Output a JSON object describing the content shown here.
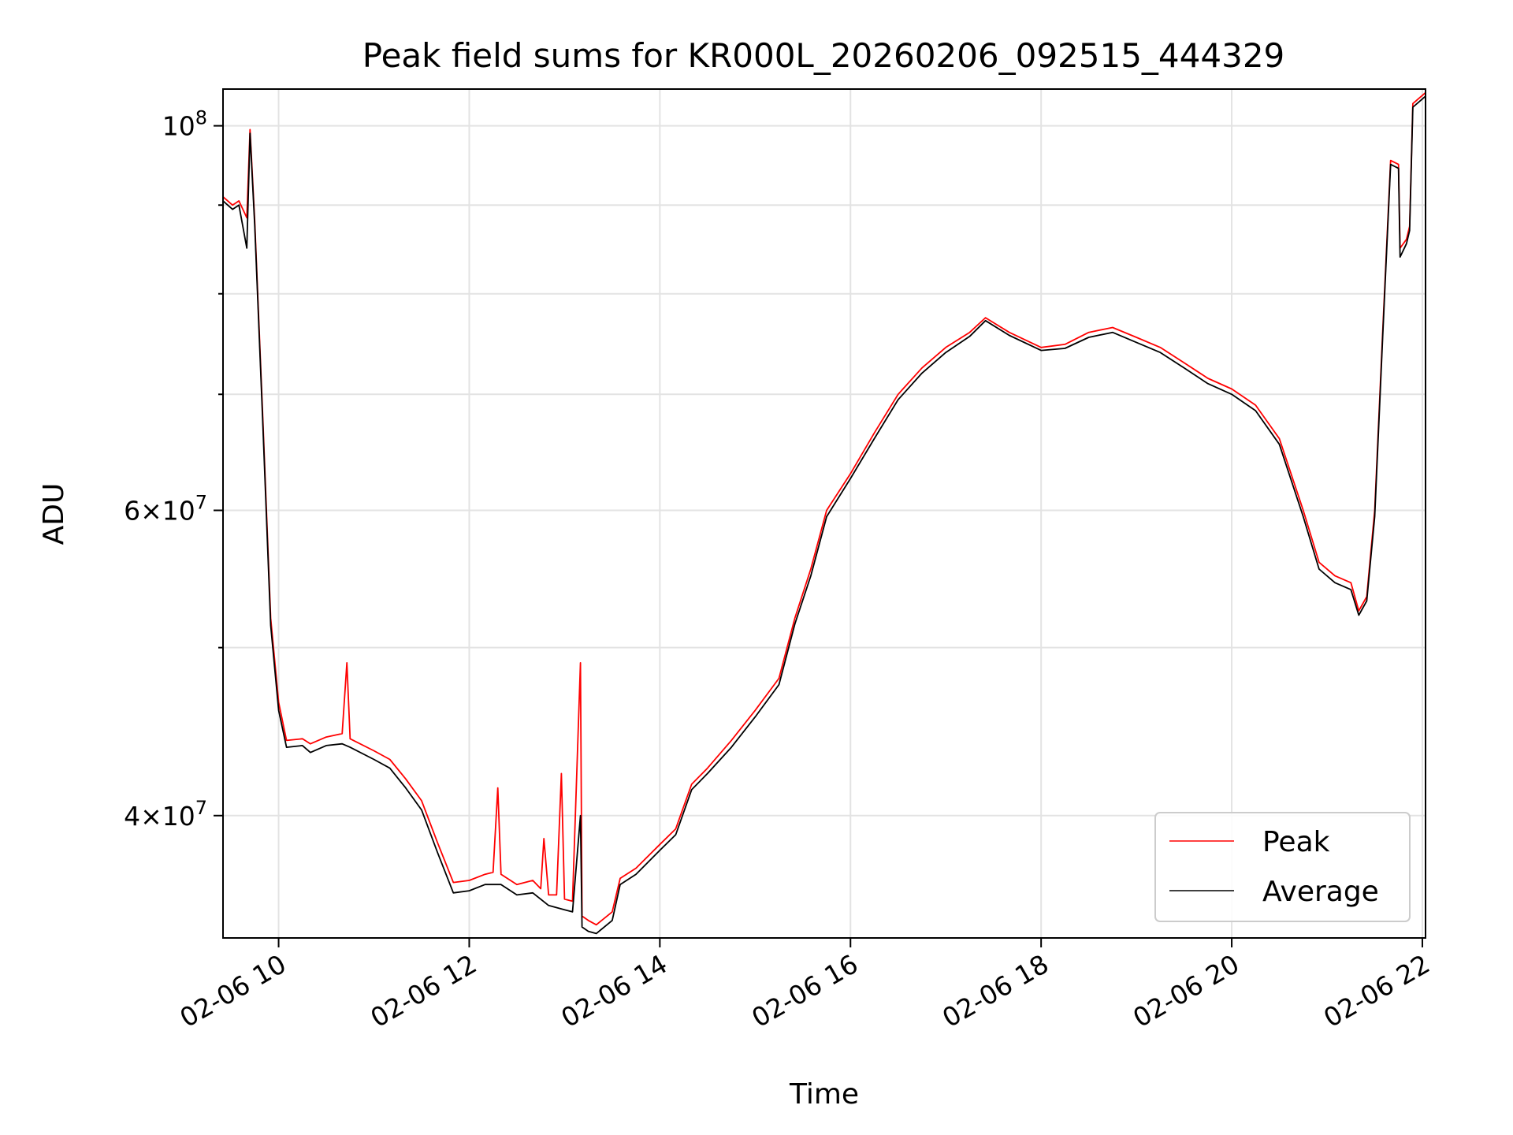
{
  "chart_data": {
    "type": "line",
    "title": "Peak field sums for KR000L_20260206_092515_444329",
    "xlabel": "Time",
    "ylabel": "ADU",
    "x_is_time": true,
    "date": "02-06",
    "xlim": [
      "2026-02-06 09:25",
      "2026-02-06 22:02"
    ],
    "ylim": [
      34000000,
      105000000
    ],
    "yscale": "log",
    "grid": true,
    "legend_position": "lower-right",
    "x_ticks": [
      {
        "t": "2026-02-06 10:00",
        "label": "02-06 10"
      },
      {
        "t": "2026-02-06 12:00",
        "label": "02-06 12"
      },
      {
        "t": "2026-02-06 14:00",
        "label": "02-06 14"
      },
      {
        "t": "2026-02-06 16:00",
        "label": "02-06 16"
      },
      {
        "t": "2026-02-06 18:00",
        "label": "02-06 18"
      },
      {
        "t": "2026-02-06 20:00",
        "label": "02-06 20"
      },
      {
        "t": "2026-02-06 22:00",
        "label": "02-06 22"
      }
    ],
    "y_major_ticks": [
      {
        "v": 40000000,
        "mantissa": "4",
        "exp": "7"
      },
      {
        "v": 60000000,
        "mantissa": "6",
        "exp": "7"
      },
      {
        "v": 100000000,
        "mantissa": "",
        "exp": "8"
      }
    ],
    "y_minor_ticks": [
      50000000,
      70000000,
      80000000,
      90000000
    ],
    "series": [
      {
        "name": "Peak",
        "color": "#ff0000",
        "points": [
          [
            "2026-02-06 09:25",
            91000000
          ],
          [
            "2026-02-06 09:31",
            90000000
          ],
          [
            "2026-02-06 09:35",
            90500000
          ],
          [
            "2026-02-06 09:40",
            88500000
          ],
          [
            "2026-02-06 09:42",
            99500000
          ],
          [
            "2026-02-06 09:45",
            88000000
          ],
          [
            "2026-02-06 09:50",
            68000000
          ],
          [
            "2026-02-06 09:55",
            52000000
          ],
          [
            "2026-02-06 10:00",
            46500000
          ],
          [
            "2026-02-06 10:05",
            44200000
          ],
          [
            "2026-02-06 10:15",
            44300000
          ],
          [
            "2026-02-06 10:20",
            44000000
          ],
          [
            "2026-02-06 10:30",
            44400000
          ],
          [
            "2026-02-06 10:40",
            44600000
          ],
          [
            "2026-02-06 10:43",
            49000000
          ],
          [
            "2026-02-06 10:45",
            44300000
          ],
          [
            "2026-02-06 11:00",
            43600000
          ],
          [
            "2026-02-06 11:10",
            43100000
          ],
          [
            "2026-02-06 11:20",
            42000000
          ],
          [
            "2026-02-06 11:30",
            40800000
          ],
          [
            "2026-02-06 11:40",
            38600000
          ],
          [
            "2026-02-06 11:50",
            36600000
          ],
          [
            "2026-02-06 12:00",
            36700000
          ],
          [
            "2026-02-06 12:10",
            37000000
          ],
          [
            "2026-02-06 12:15",
            37100000
          ],
          [
            "2026-02-06 12:18",
            41500000
          ],
          [
            "2026-02-06 12:20",
            37000000
          ],
          [
            "2026-02-06 12:30",
            36500000
          ],
          [
            "2026-02-06 12:40",
            36700000
          ],
          [
            "2026-02-06 12:45",
            36300000
          ],
          [
            "2026-02-06 12:47",
            38800000
          ],
          [
            "2026-02-06 12:50",
            36000000
          ],
          [
            "2026-02-06 12:55",
            36000000
          ],
          [
            "2026-02-06 12:58",
            42300000
          ],
          [
            "2026-02-06 13:00",
            35800000
          ],
          [
            "2026-02-06 13:05",
            35700000
          ],
          [
            "2026-02-06 13:10",
            49000000
          ],
          [
            "2026-02-06 13:11",
            35000000
          ],
          [
            "2026-02-06 13:15",
            34800000
          ],
          [
            "2026-02-06 13:20",
            34600000
          ],
          [
            "2026-02-06 13:30",
            35200000
          ],
          [
            "2026-02-06 13:35",
            36800000
          ],
          [
            "2026-02-06 13:45",
            37300000
          ],
          [
            "2026-02-06 14:00",
            38500000
          ],
          [
            "2026-02-06 14:10",
            39300000
          ],
          [
            "2026-02-06 14:20",
            41700000
          ],
          [
            "2026-02-06 14:30",
            42600000
          ],
          [
            "2026-02-06 14:45",
            44200000
          ],
          [
            "2026-02-06 15:00",
            46000000
          ],
          [
            "2026-02-06 15:15",
            48000000
          ],
          [
            "2026-02-06 15:25",
            52000000
          ],
          [
            "2026-02-06 15:35",
            55500000
          ],
          [
            "2026-02-06 15:45",
            60000000
          ],
          [
            "2026-02-06 16:00",
            63000000
          ],
          [
            "2026-02-06 16:15",
            66500000
          ],
          [
            "2026-02-06 16:30",
            70000000
          ],
          [
            "2026-02-06 16:45",
            72500000
          ],
          [
            "2026-02-06 17:00",
            74500000
          ],
          [
            "2026-02-06 17:15",
            76000000
          ],
          [
            "2026-02-06 17:25",
            77500000
          ],
          [
            "2026-02-06 17:40",
            76000000
          ],
          [
            "2026-02-06 18:00",
            74500000
          ],
          [
            "2026-02-06 18:15",
            74800000
          ],
          [
            "2026-02-06 18:30",
            76000000
          ],
          [
            "2026-02-06 18:45",
            76500000
          ],
          [
            "2026-02-06 19:00",
            75500000
          ],
          [
            "2026-02-06 19:15",
            74500000
          ],
          [
            "2026-02-06 19:30",
            73000000
          ],
          [
            "2026-02-06 19:45",
            71500000
          ],
          [
            "2026-02-06 20:00",
            70500000
          ],
          [
            "2026-02-06 20:15",
            69000000
          ],
          [
            "2026-02-06 20:30",
            66000000
          ],
          [
            "2026-02-06 20:45",
            60000000
          ],
          [
            "2026-02-06 20:55",
            56000000
          ],
          [
            "2026-02-06 21:05",
            55000000
          ],
          [
            "2026-02-06 21:15",
            54500000
          ],
          [
            "2026-02-06 21:20",
            52500000
          ],
          [
            "2026-02-06 21:25",
            53500000
          ],
          [
            "2026-02-06 21:30",
            60000000
          ],
          [
            "2026-02-06 21:35",
            76000000
          ],
          [
            "2026-02-06 21:40",
            95500000
          ],
          [
            "2026-02-06 21:45",
            95000000
          ],
          [
            "2026-02-06 21:46",
            85000000
          ],
          [
            "2026-02-06 21:50",
            86000000
          ],
          [
            "2026-02-06 21:52",
            87500000
          ],
          [
            "2026-02-06 21:54",
            103000000
          ],
          [
            "2026-02-06 22:02",
            104500000
          ]
        ]
      },
      {
        "name": "Average",
        "color": "#000000",
        "points": [
          [
            "2026-02-06 09:25",
            90500000
          ],
          [
            "2026-02-06 09:31",
            89500000
          ],
          [
            "2026-02-06 09:35",
            90000000
          ],
          [
            "2026-02-06 09:40",
            85000000
          ],
          [
            "2026-02-06 09:42",
            99000000
          ],
          [
            "2026-02-06 09:45",
            87500000
          ],
          [
            "2026-02-06 09:50",
            67500000
          ],
          [
            "2026-02-06 09:55",
            51500000
          ],
          [
            "2026-02-06 10:00",
            46000000
          ],
          [
            "2026-02-06 10:05",
            43800000
          ],
          [
            "2026-02-06 10:15",
            43900000
          ],
          [
            "2026-02-06 10:20",
            43500000
          ],
          [
            "2026-02-06 10:30",
            43900000
          ],
          [
            "2026-02-06 10:40",
            44000000
          ],
          [
            "2026-02-06 10:45",
            43800000
          ],
          [
            "2026-02-06 11:00",
            43100000
          ],
          [
            "2026-02-06 11:10",
            42600000
          ],
          [
            "2026-02-06 11:20",
            41500000
          ],
          [
            "2026-02-06 11:30",
            40300000
          ],
          [
            "2026-02-06 11:40",
            38100000
          ],
          [
            "2026-02-06 11:50",
            36100000
          ],
          [
            "2026-02-06 12:00",
            36200000
          ],
          [
            "2026-02-06 12:10",
            36500000
          ],
          [
            "2026-02-06 12:20",
            36500000
          ],
          [
            "2026-02-06 12:30",
            36000000
          ],
          [
            "2026-02-06 12:40",
            36100000
          ],
          [
            "2026-02-06 12:50",
            35500000
          ],
          [
            "2026-02-06 13:00",
            35300000
          ],
          [
            "2026-02-06 13:05",
            35200000
          ],
          [
            "2026-02-06 13:10",
            40000000
          ],
          [
            "2026-02-06 13:11",
            34500000
          ],
          [
            "2026-02-06 13:15",
            34300000
          ],
          [
            "2026-02-06 13:20",
            34200000
          ],
          [
            "2026-02-06 13:30",
            34800000
          ],
          [
            "2026-02-06 13:35",
            36500000
          ],
          [
            "2026-02-06 13:45",
            37000000
          ],
          [
            "2026-02-06 14:00",
            38200000
          ],
          [
            "2026-02-06 14:10",
            39000000
          ],
          [
            "2026-02-06 14:20",
            41400000
          ],
          [
            "2026-02-06 14:30",
            42300000
          ],
          [
            "2026-02-06 14:45",
            43800000
          ],
          [
            "2026-02-06 15:00",
            45600000
          ],
          [
            "2026-02-06 15:15",
            47600000
          ],
          [
            "2026-02-06 15:25",
            51600000
          ],
          [
            "2026-02-06 15:35",
            55000000
          ],
          [
            "2026-02-06 15:45",
            59500000
          ],
          [
            "2026-02-06 16:00",
            62600000
          ],
          [
            "2026-02-06 16:15",
            66000000
          ],
          [
            "2026-02-06 16:30",
            69500000
          ],
          [
            "2026-02-06 16:45",
            72000000
          ],
          [
            "2026-02-06 17:00",
            74000000
          ],
          [
            "2026-02-06 17:15",
            75600000
          ],
          [
            "2026-02-06 17:25",
            77200000
          ],
          [
            "2026-02-06 17:40",
            75700000
          ],
          [
            "2026-02-06 18:00",
            74200000
          ],
          [
            "2026-02-06 18:15",
            74400000
          ],
          [
            "2026-02-06 18:30",
            75500000
          ],
          [
            "2026-02-06 18:45",
            76000000
          ],
          [
            "2026-02-06 19:00",
            75000000
          ],
          [
            "2026-02-06 19:15",
            74000000
          ],
          [
            "2026-02-06 19:30",
            72500000
          ],
          [
            "2026-02-06 19:45",
            71000000
          ],
          [
            "2026-02-06 20:00",
            70000000
          ],
          [
            "2026-02-06 20:15",
            68500000
          ],
          [
            "2026-02-06 20:30",
            65500000
          ],
          [
            "2026-02-06 20:45",
            59500000
          ],
          [
            "2026-02-06 20:55",
            55500000
          ],
          [
            "2026-02-06 21:05",
            54500000
          ],
          [
            "2026-02-06 21:15",
            54000000
          ],
          [
            "2026-02-06 21:20",
            52200000
          ],
          [
            "2026-02-06 21:25",
            53200000
          ],
          [
            "2026-02-06 21:30",
            59500000
          ],
          [
            "2026-02-06 21:35",
            75500000
          ],
          [
            "2026-02-06 21:40",
            95000000
          ],
          [
            "2026-02-06 21:45",
            94500000
          ],
          [
            "2026-02-06 21:46",
            84000000
          ],
          [
            "2026-02-06 21:50",
            85500000
          ],
          [
            "2026-02-06 21:52",
            87000000
          ],
          [
            "2026-02-06 21:54",
            102500000
          ],
          [
            "2026-02-06 22:02",
            104000000
          ]
        ]
      }
    ]
  }
}
